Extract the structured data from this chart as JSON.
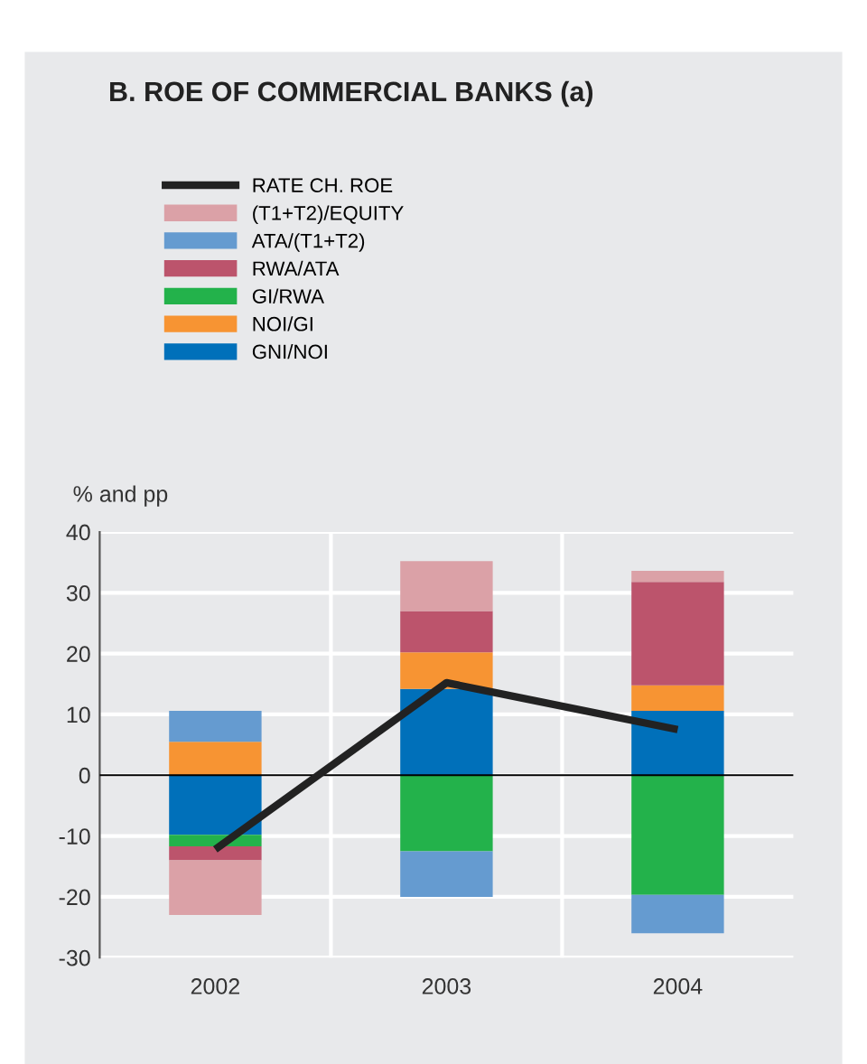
{
  "chart_data": {
    "type": "bar",
    "title": "B. ROE OF COMMERCIAL BANKS (a)",
    "ylabel": "% and pp",
    "categories": [
      "2002",
      "2003",
      "2004"
    ],
    "stacked": true,
    "series": [
      {
        "name": "GNI/NOI",
        "color": "#0070ba",
        "values": [
          -9.8,
          14.2,
          10.6
        ]
      },
      {
        "name": "NOI/GI",
        "color": "#f79433",
        "values": [
          5.5,
          6.0,
          4.2
        ]
      },
      {
        "name": "GI/RWA",
        "color": "#23b24b",
        "values": [
          -1.9,
          -12.5,
          -19.7
        ]
      },
      {
        "name": "RWA/ATA",
        "color": "#bc546c",
        "values": [
          -2.3,
          6.8,
          17.0
        ]
      },
      {
        "name": "ATA/(T1+T2)",
        "color": "#659bd0",
        "values": [
          5.1,
          -7.5,
          -6.3
        ]
      },
      {
        "name": "(T1+T2)/EQUITY",
        "color": "#dba1a7",
        "values": [
          -9.0,
          8.2,
          1.8
        ]
      },
      {
        "name": "RATE CH. ROE",
        "type": "line",
        "color": "#222222",
        "values": [
          -12.2,
          15.2,
          7.5
        ]
      }
    ],
    "ylim": [
      -30,
      40
    ],
    "yticks": [
      -30,
      -20,
      -10,
      0,
      10,
      20,
      30,
      40
    ],
    "grid": true,
    "legend": "top",
    "ref_lines": [
      {
        "axis": "y",
        "value": 0,
        "color": "#000000"
      }
    ]
  }
}
